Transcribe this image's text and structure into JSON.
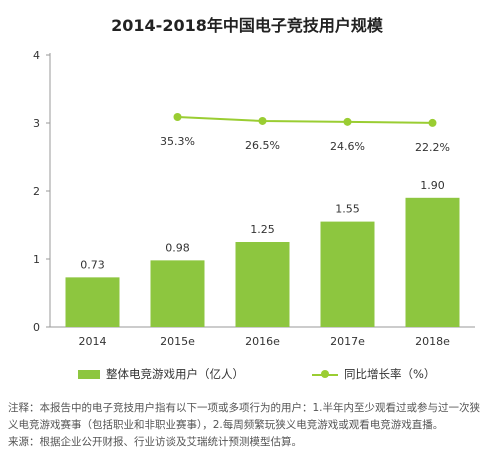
{
  "chart_data": {
    "type": "bar",
    "title": "2014-2018年中国电子竞技用户规模",
    "categories": [
      "2014",
      "2015e",
      "2016e",
      "2017e",
      "2018e"
    ],
    "series": [
      {
        "name": "整体电竞游戏用户（亿人）",
        "type": "bar",
        "values": [
          0.73,
          0.98,
          1.25,
          1.55,
          1.9
        ],
        "labels": [
          "0.73",
          "0.98",
          "1.25",
          "1.55",
          "1.90"
        ],
        "color": "#8dc63f"
      },
      {
        "name": "同比增长率（%）",
        "type": "line",
        "values": [
          null,
          35.3,
          26.5,
          24.6,
          22.2
        ],
        "labels": [
          "",
          "35.3%",
          "26.5%",
          "24.6%",
          "22.2%"
        ],
        "color": "#9acd32"
      }
    ],
    "y_ticks": [
      "0",
      "1",
      "2",
      "3",
      "4"
    ],
    "ylim": [
      0,
      4
    ],
    "grid": false,
    "legend_position": "bottom"
  },
  "notes": {
    "line1": "注释：本报告中的电子竞技用户指有以下一项或多项行为的用户：1.半年内至少观看过或参与过一次狭",
    "line2": "义电竞游戏赛事（包括职业和非职业赛事），2.每周频繁玩狭义电竞游戏或观看电竞游戏直播。",
    "line3": "来源：根据企业公开财报、行业访谈及艾瑞统计预测模型估算。"
  }
}
